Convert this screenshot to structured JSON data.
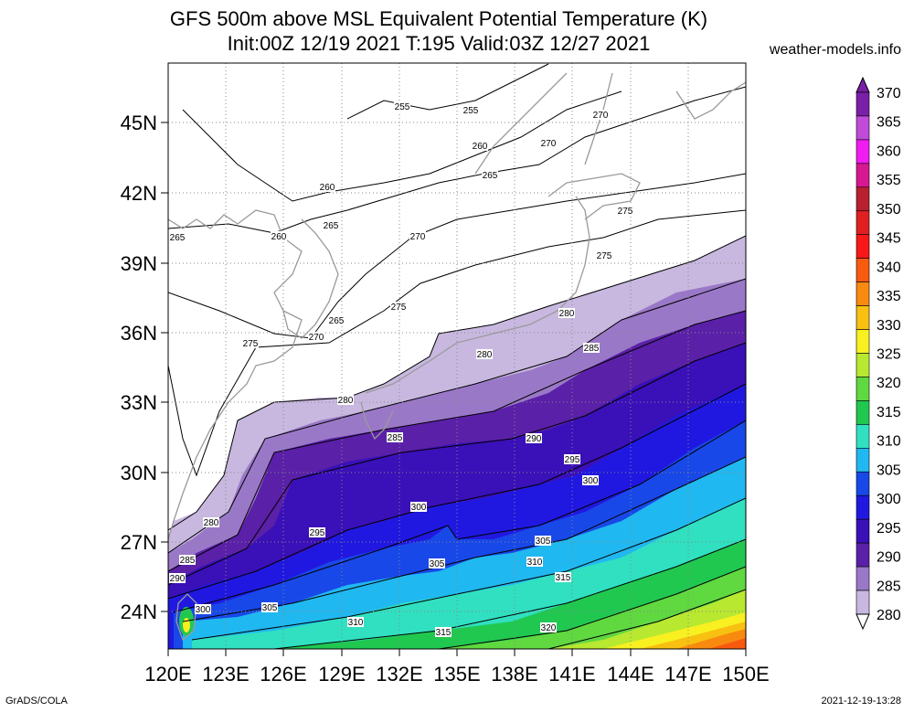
{
  "header": {
    "title_line1": "GFS 500m above MSL Equivalent Potential Temperature (K)",
    "title_line2": "Init:00Z 12/19 2021 T:195 Valid:03Z 12/27 2021",
    "site": "weather-models.info"
  },
  "footer": {
    "left": "GrADS/COLA",
    "right": "2021-12-19-13:28"
  },
  "map": {
    "lat_labels": [
      "45N",
      "42N",
      "39N",
      "36N",
      "33N",
      "30N",
      "27N",
      "24N"
    ],
    "lon_labels": [
      "120E",
      "123E",
      "126E",
      "129E",
      "132E",
      "135E",
      "138E",
      "141E",
      "144E",
      "147E",
      "150E"
    ],
    "contour_labels": [
      "255",
      "255",
      "260",
      "260",
      "260",
      "265",
      "265",
      "265",
      "265",
      "270",
      "270",
      "270",
      "270",
      "275",
      "275",
      "275",
      "275",
      "280",
      "280",
      "280",
      "280",
      "285",
      "285",
      "285",
      "290",
      "290",
      "295",
      "295",
      "300",
      "300",
      "300",
      "305",
      "305",
      "305",
      "310",
      "310",
      "315",
      "315",
      "320"
    ]
  },
  "colorbar": {
    "levels": [
      "370",
      "365",
      "360",
      "355",
      "350",
      "345",
      "340",
      "335",
      "330",
      "325",
      "320",
      "315",
      "310",
      "305",
      "300",
      "295",
      "290",
      "285",
      "280"
    ],
    "colors": [
      "#7a1fa8",
      "#c04bd8",
      "#f01cf0",
      "#d81890",
      "#b82030",
      "#e02020",
      "#f81818",
      "#f85a10",
      "#f88a10",
      "#f8c010",
      "#f8f020",
      "#b8e830",
      "#60d840",
      "#20c850",
      "#30e0c0",
      "#20b8f0",
      "#1848e8",
      "#2018e0",
      "#3a10b8",
      "#5a20a8",
      "#9a78c8",
      "#c8b8e0"
    ]
  }
}
